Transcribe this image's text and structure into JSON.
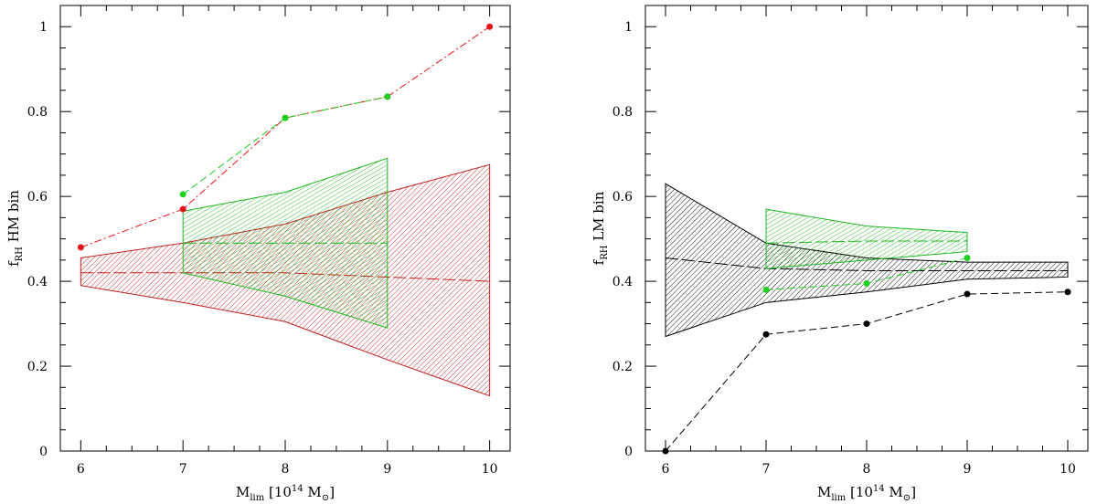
{
  "chart_data": [
    {
      "type": "line",
      "xlim": [
        5.8,
        10.2
      ],
      "ylim": [
        0,
        1.05
      ],
      "xticks": [
        "6",
        "7",
        "8",
        "9",
        "10"
      ],
      "yticks": [
        "0",
        "0.2",
        "0.4",
        "0.6",
        "0.8",
        "1"
      ],
      "xlabel": {
        "main": "M",
        "sub": "lim",
        "rest": " [10",
        "sup": "14",
        "rest2": " M",
        "sub2": "⊙",
        "end": "]"
      },
      "ylabel": {
        "main": "f",
        "sub": "RH",
        "rest": " HM bin"
      },
      "series": [
        {
          "color": "#e8121a",
          "x": [
            6,
            7,
            8,
            9,
            10
          ],
          "y": [
            0.48,
            0.57,
            0.785,
            0.835,
            1.0
          ],
          "style": "dash-dot"
        },
        {
          "color": "#1fd11f",
          "x": [
            7,
            8,
            9
          ],
          "y": [
            0.605,
            0.785,
            0.835
          ],
          "style": "dashed"
        }
      ],
      "bands": [
        {
          "color": "#c02020",
          "x": [
            6,
            7,
            8,
            9,
            10
          ],
          "upper": [
            0.455,
            0.49,
            0.535,
            0.61,
            0.675
          ],
          "lower": [
            0.39,
            0.35,
            0.305,
            0.215,
            0.13
          ],
          "median": [
            0.42,
            0.42,
            0.42,
            0.41,
            0.4
          ]
        },
        {
          "color": "#1fb81f",
          "x": [
            7,
            8,
            9
          ],
          "upper": [
            0.565,
            0.61,
            0.69
          ],
          "lower": [
            0.42,
            0.365,
            0.29
          ],
          "median": [
            0.49,
            0.49,
            0.49
          ]
        }
      ]
    },
    {
      "type": "line",
      "xlim": [
        5.8,
        10.2
      ],
      "ylim": [
        0,
        1.05
      ],
      "xticks": [
        "6",
        "7",
        "8",
        "9",
        "10"
      ],
      "yticks": [
        "0",
        "0.2",
        "0.4",
        "0.6",
        "0.8",
        "1"
      ],
      "xlabel": {
        "main": "M",
        "sub": "lim",
        "rest": " [10",
        "sup": "14",
        "rest2": " M",
        "sub2": "⊙",
        "end": "]"
      },
      "ylabel": {
        "main": "f",
        "sub": "RH",
        "rest": " LM bin"
      },
      "series": [
        {
          "color": "#000000",
          "x": [
            6,
            7,
            8,
            9,
            10
          ],
          "y": [
            0.0,
            0.275,
            0.3,
            0.37,
            0.375
          ],
          "style": "dashed"
        },
        {
          "color": "#1fd11f",
          "x": [
            7,
            8,
            9
          ],
          "y": [
            0.38,
            0.395,
            0.455
          ],
          "style": "dashed"
        }
      ],
      "bands": [
        {
          "color": "#000000",
          "x": [
            6,
            7,
            8,
            9,
            10
          ],
          "upper": [
            0.63,
            0.49,
            0.455,
            0.445,
            0.445
          ],
          "lower": [
            0.27,
            0.35,
            0.375,
            0.405,
            0.41
          ],
          "median": [
            0.455,
            0.43,
            0.425,
            0.425,
            0.425
          ]
        },
        {
          "color": "#1fb81f",
          "x": [
            7,
            8,
            9
          ],
          "upper": [
            0.57,
            0.53,
            0.515
          ],
          "lower": [
            0.43,
            0.45,
            0.47
          ],
          "median": [
            0.49,
            0.495,
            0.495
          ]
        }
      ]
    }
  ]
}
